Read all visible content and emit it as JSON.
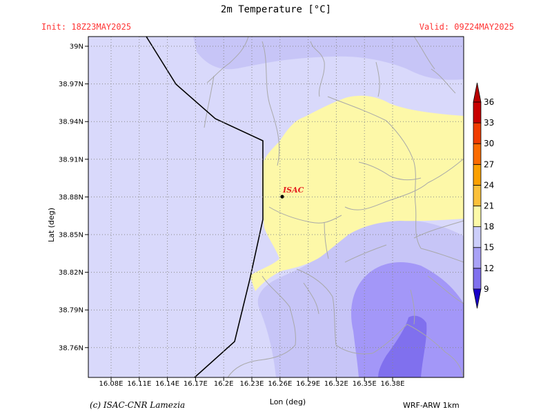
{
  "title": "2m Temperature [°C]",
  "init_label": "Init: 18Z23MAY2025",
  "valid_label": "Valid: 09Z24MAY2025",
  "credit": "(c) ISAC-CNR Lamezia",
  "model": "WRF-ARW 1km",
  "x_axis": {
    "label": "Lon (deg)",
    "ticks": [
      "16.08E",
      "16.11E",
      "16.14E",
      "16.17E",
      "16.2E",
      "16.23E",
      "16.26E",
      "16.29E",
      "16.32E",
      "16.35E",
      "16.38E"
    ]
  },
  "y_axis": {
    "label": "Lat (deg)",
    "ticks": [
      "39N",
      "38.97N",
      "38.94N",
      "38.91N",
      "38.88N",
      "38.85N",
      "38.82N",
      "38.79N",
      "38.76N"
    ]
  },
  "station": {
    "name": "ISAC"
  },
  "colorbar": {
    "ticks": [
      "9",
      "12",
      "15",
      "18",
      "21",
      "24",
      "27",
      "30",
      "33",
      "36"
    ],
    "colors": [
      "#8070ee",
      "#a9a2f6",
      "#cccefa",
      "#fcf9a8",
      "#fbc03a",
      "#fba000",
      "#fb6b00",
      "#f03c00",
      "#c80000"
    ],
    "extend_low_color": "#1800c8",
    "extend_high_color": "#b80000"
  },
  "temperature_fill_colors": {
    "band_12_15": "#a397f8",
    "band_15_18": "#c7c5f7",
    "band_18_21": "#d9d9fb",
    "band_21_24": "#fdf8a8"
  }
}
